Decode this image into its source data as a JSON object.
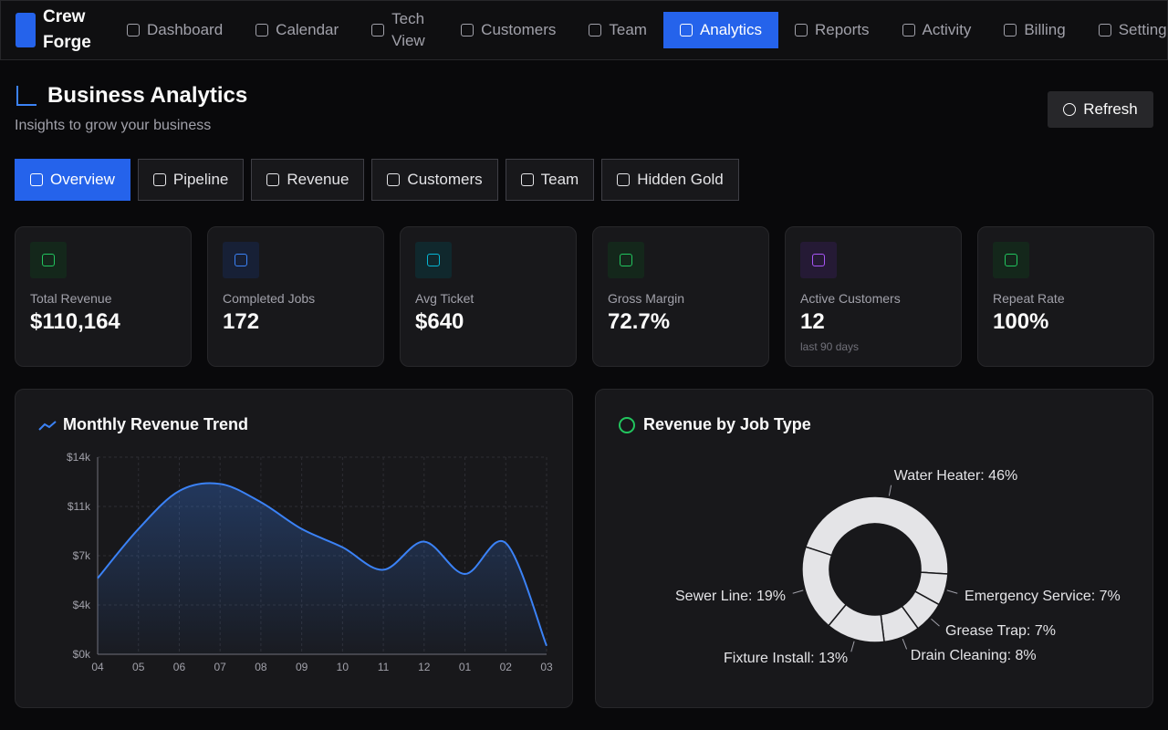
{
  "brand": "Crew Forge",
  "nav": [
    "Dashboard",
    "Calendar",
    "Tech View",
    "Customers",
    "Team",
    "Analytics",
    "Reports",
    "Activity",
    "Billing",
    "Settings"
  ],
  "header": {
    "title": "Business Analytics",
    "subtitle": "Insights to grow your business",
    "refresh": "Refresh"
  },
  "tabs": [
    "Overview",
    "Pipeline",
    "Revenue",
    "Customers",
    "Team",
    "Hidden Gold"
  ],
  "kpis": [
    {
      "label": "Total Revenue",
      "value": "$110,164"
    },
    {
      "label": "Completed Jobs",
      "value": "172"
    },
    {
      "label": "Avg Ticket",
      "value": "$640"
    },
    {
      "label": "Gross Margin",
      "value": "72.7%"
    },
    {
      "label": "Active Customers",
      "value": "12",
      "note": "last 90 days"
    },
    {
      "label": "Repeat Rate",
      "value": "100%"
    }
  ],
  "chart_data": [
    {
      "type": "line",
      "title": "Monthly Revenue Trend",
      "categories": [
        "04",
        "05",
        "06",
        "07",
        "08",
        "09",
        "10",
        "11",
        "12",
        "01",
        "02",
        "03"
      ],
      "values": [
        5400,
        8900,
        11600,
        12100,
        10800,
        8900,
        7600,
        6000,
        8000,
        5700,
        7900,
        600
      ],
      "color": "#3b82f6",
      "ylim": [
        0,
        14000
      ],
      "yticks": [
        {
          "value": 0,
          "label": "$0k"
        },
        {
          "value": 3500,
          "label": "$4k"
        },
        {
          "value": 7000,
          "label": "$7k"
        },
        {
          "value": 10500,
          "label": "$11k"
        },
        {
          "value": 14000,
          "label": "$14k"
        }
      ],
      "grid": true
    },
    {
      "type": "pie",
      "title": "Revenue by Job Type",
      "values": [
        46,
        7,
        7,
        8,
        13,
        19
      ],
      "value_labels": [
        "Water Heater: 46%",
        "Emergency Service: 7%",
        "Grease Trap: 7%",
        "Drain Cleaning: 8%",
        "Fixture Install: 13%",
        "Sewer Line: 19%"
      ],
      "color": "#e4e4e7"
    }
  ]
}
